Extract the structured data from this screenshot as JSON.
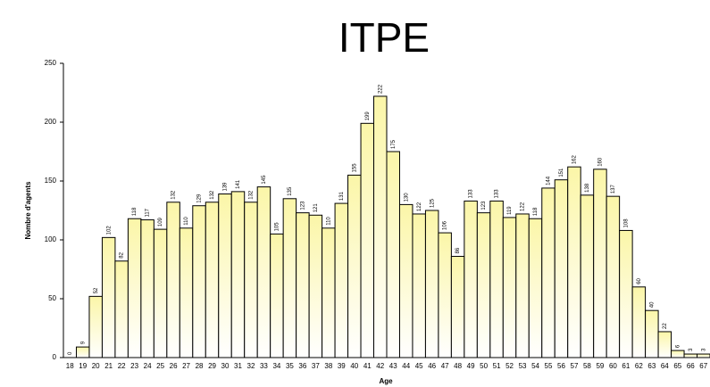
{
  "chart_data": {
    "type": "bar",
    "title": "ITPE",
    "x_label": "Age",
    "y_label": "Nombre d'agents",
    "categories": [
      "18",
      "19",
      "20",
      "21",
      "22",
      "23",
      "24",
      "25",
      "26",
      "27",
      "28",
      "29",
      "30",
      "31",
      "32",
      "33",
      "34",
      "35",
      "36",
      "37",
      "38",
      "39",
      "40",
      "41",
      "42",
      "43",
      "44",
      "45",
      "46",
      "47",
      "48",
      "49",
      "50",
      "51",
      "52",
      "53",
      "54",
      "55",
      "56",
      "57",
      "58",
      "59",
      "60",
      "61",
      "62",
      "63",
      "64",
      "65",
      "66",
      "67"
    ],
    "values": [
      0,
      9,
      52,
      102,
      82,
      118,
      117,
      109,
      132,
      110,
      129,
      132,
      139,
      141,
      132,
      145,
      105,
      135,
      123,
      121,
      110,
      131,
      155,
      199,
      222,
      175,
      130,
      122,
      125,
      106,
      86,
      133,
      123,
      133,
      119,
      122,
      118,
      144,
      151,
      162,
      138,
      160,
      137,
      108,
      60,
      40,
      22,
      6,
      3,
      3
    ],
    "color": "#fbf6a8",
    "ylim": [
      0,
      250
    ],
    "yticks": [
      0,
      50,
      100,
      150,
      200,
      250
    ],
    "grid": false
  }
}
